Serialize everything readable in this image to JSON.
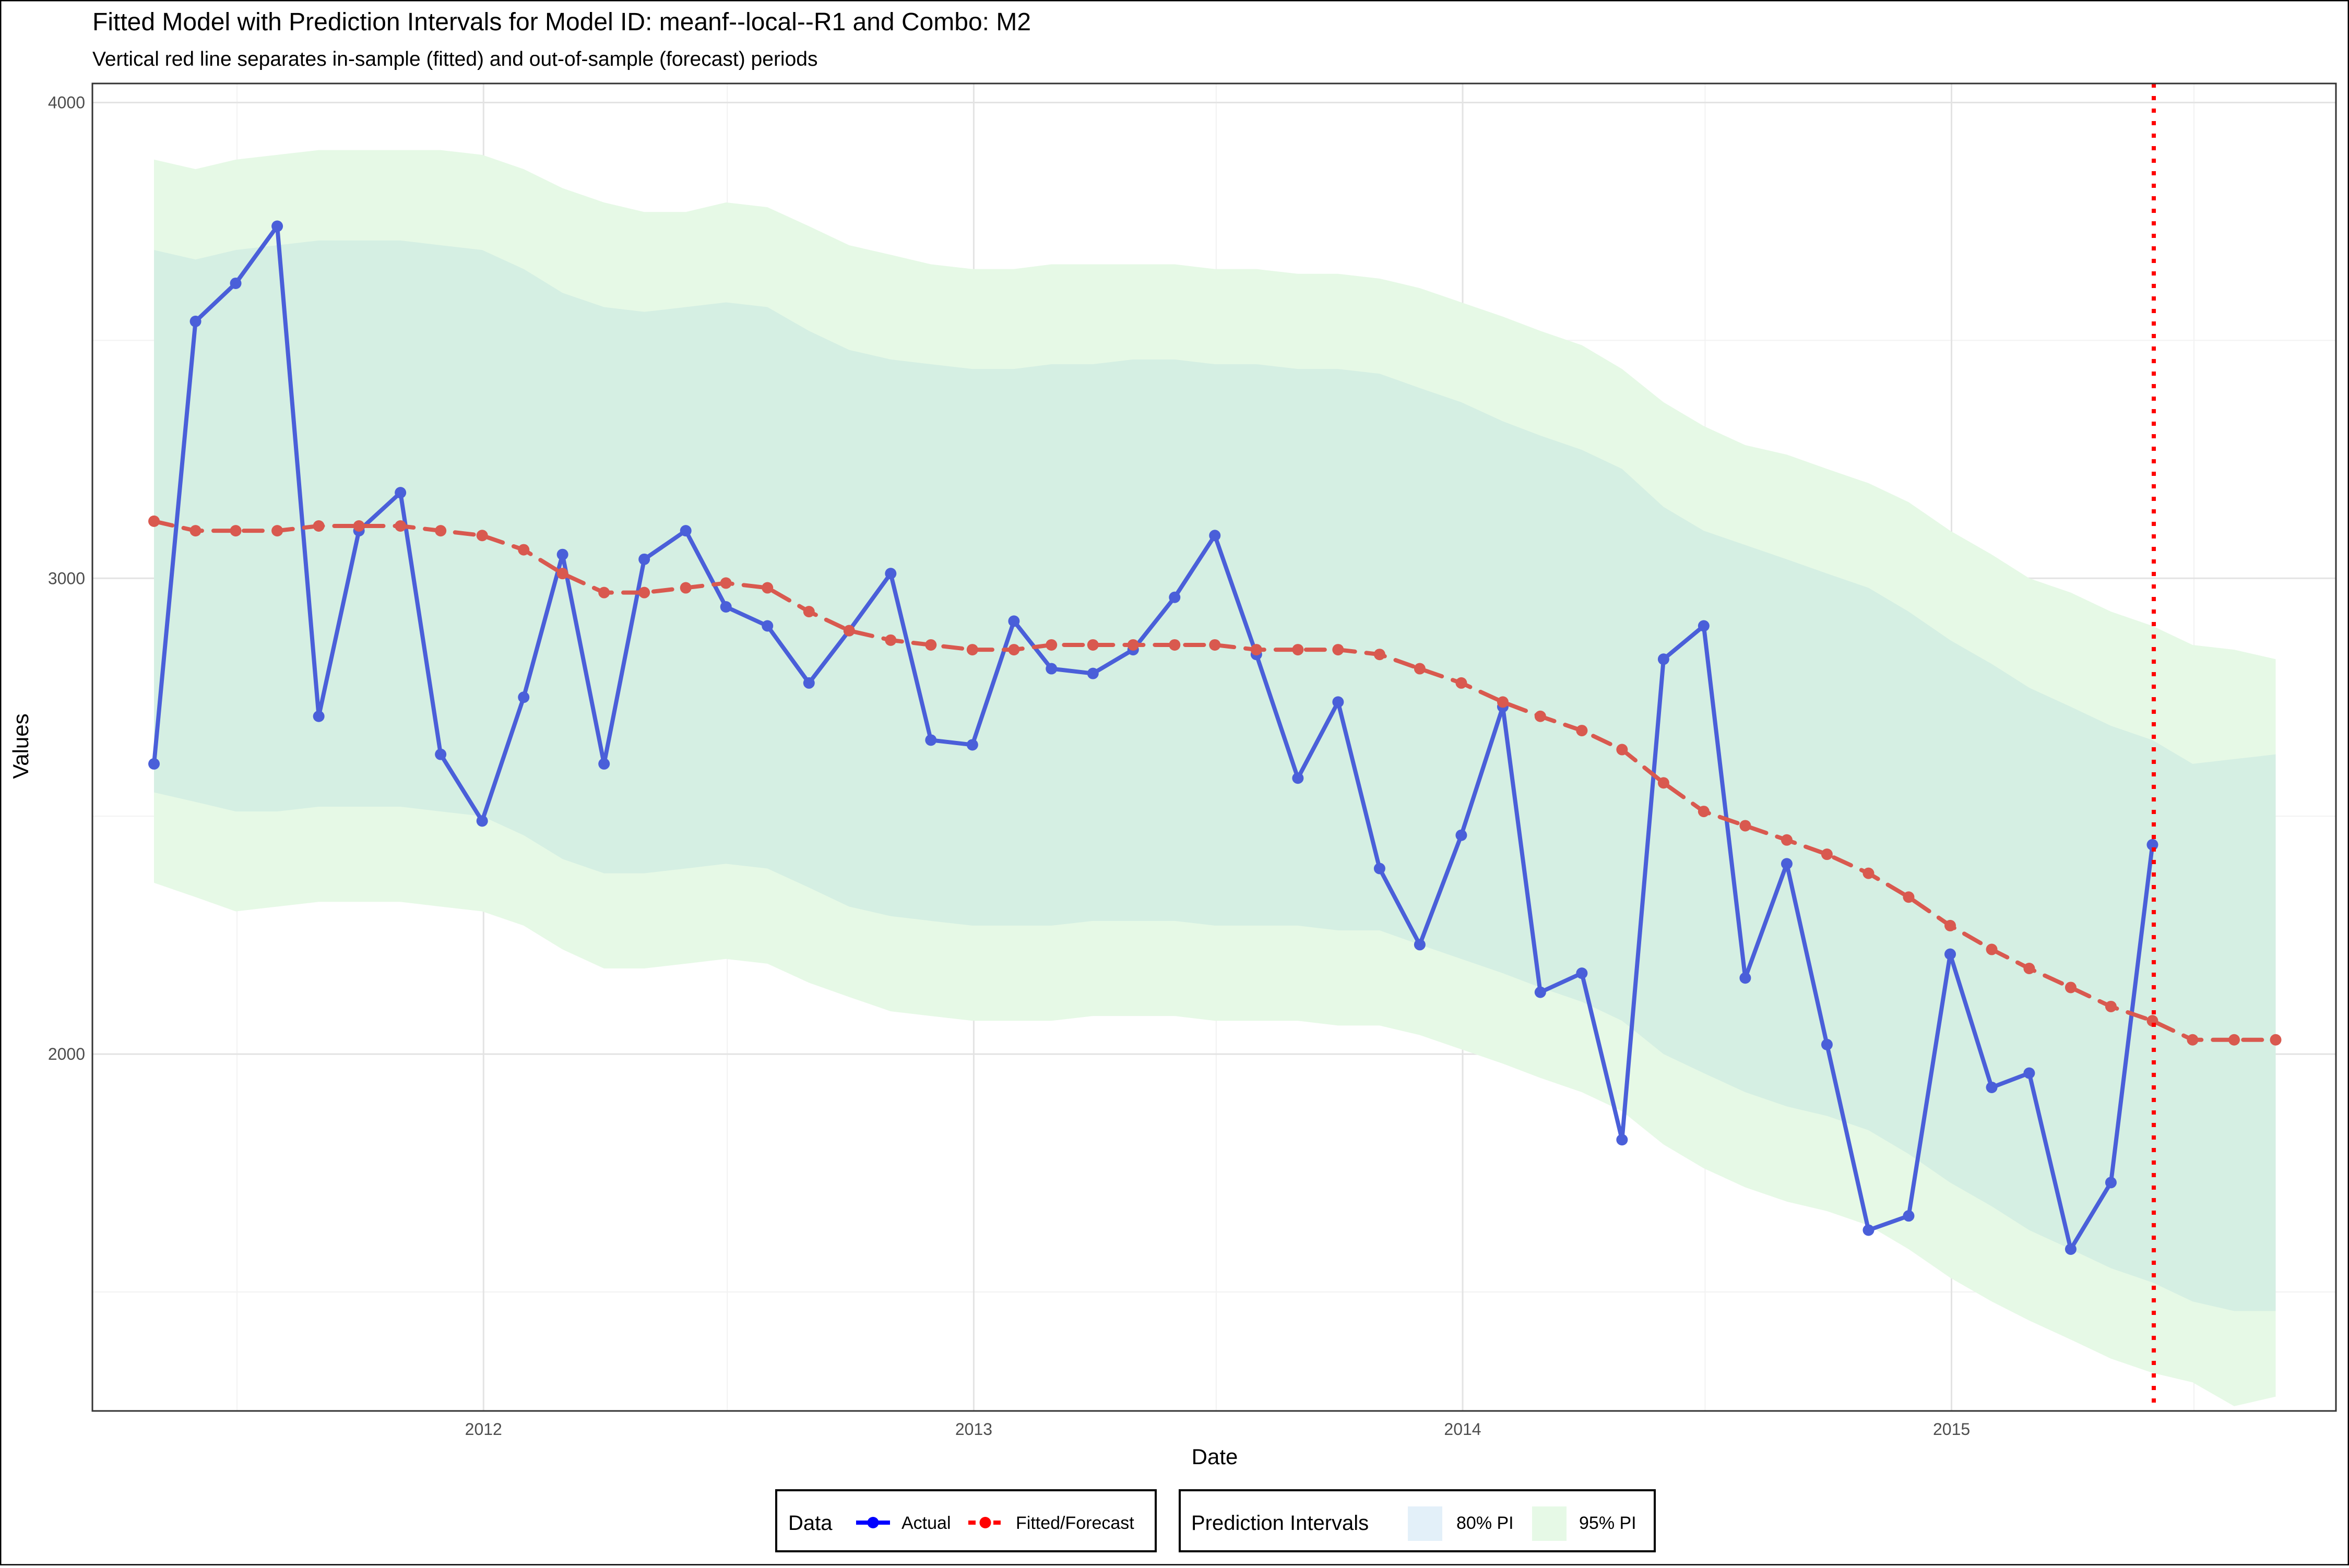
{
  "chart_data": {
    "type": "line",
    "title": "Fitted Model with Prediction Intervals for Model ID: meanf--local--R1 and Combo: M2",
    "subtitle": "Vertical red line separates in-sample (fitted) and out-of-sample (forecast) periods",
    "xlabel": "Date",
    "ylabel": "Values",
    "x_ticks": [
      "2012",
      "2013",
      "2014",
      "2015"
    ],
    "y_ticks": [
      2000,
      3000,
      4000
    ],
    "ylim": [
      1250,
      4040
    ],
    "xlim": [
      "2011-03-15",
      "2015-10-15"
    ],
    "grid": true,
    "legend_position": "bottom",
    "split_date": "2015-06-01",
    "split_line_color": "#ff0000",
    "x": [
      "2011-04-30",
      "2011-05-31",
      "2011-06-30",
      "2011-07-31",
      "2011-08-31",
      "2011-09-30",
      "2011-10-31",
      "2011-11-30",
      "2011-12-31",
      "2012-01-31",
      "2012-02-29",
      "2012-03-31",
      "2012-04-30",
      "2012-05-31",
      "2012-06-30",
      "2012-07-31",
      "2012-08-31",
      "2012-09-30",
      "2012-10-31",
      "2012-11-30",
      "2012-12-31",
      "2013-01-31",
      "2013-02-28",
      "2013-03-31",
      "2013-04-30",
      "2013-05-31",
      "2013-06-30",
      "2013-07-31",
      "2013-08-31",
      "2013-09-30",
      "2013-10-31",
      "2013-11-30",
      "2013-12-31",
      "2014-01-31",
      "2014-02-28",
      "2014-03-31",
      "2014-04-30",
      "2014-05-31",
      "2014-06-30",
      "2014-07-31",
      "2014-08-31",
      "2014-09-30",
      "2014-10-31",
      "2014-11-30",
      "2014-12-31",
      "2015-01-31",
      "2015-02-28",
      "2015-03-31",
      "2015-04-30",
      "2015-05-31",
      "2015-06-30",
      "2015-07-31",
      "2015-08-31"
    ],
    "series": [
      {
        "name": "Actual",
        "color": "#4a5fd9",
        "values": [
          2610,
          3540,
          3620,
          3740,
          2710,
          3100,
          3180,
          2630,
          2490,
          2750,
          3050,
          2610,
          3040,
          3100,
          2940,
          2900,
          2780,
          2890,
          3010,
          2660,
          2650,
          2910,
          2810,
          2800,
          2850,
          2960,
          3090,
          2840,
          2580,
          2740,
          2390,
          2230,
          2460,
          2730,
          2130,
          2170,
          1820,
          2830,
          2900,
          2160,
          2400,
          2020,
          1630,
          1660,
          2210,
          1930,
          1960,
          1590,
          1730,
          2440,
          null,
          null,
          null
        ]
      },
      {
        "name": "Fitted/Forecast",
        "color": "#d9594f",
        "values": [
          3120,
          3100,
          3100,
          3100,
          3110,
          3110,
          3110,
          3100,
          3090,
          3060,
          3010,
          2970,
          2970,
          2980,
          2990,
          2980,
          2930,
          2890,
          2870,
          2860,
          2850,
          2850,
          2860,
          2860,
          2860,
          2860,
          2860,
          2850,
          2850,
          2850,
          2840,
          2810,
          2780,
          2740,
          2710,
          2680,
          2640,
          2570,
          2510,
          2480,
          2450,
          2420,
          2380,
          2330,
          2270,
          2220,
          2180,
          2140,
          2100,
          2070,
          2030,
          2030,
          2030
        ]
      }
    ],
    "intervals": [
      {
        "name": "95% PI",
        "color": "#e6f9e6",
        "upper": [
          3880,
          3860,
          3880,
          3890,
          3900,
          3900,
          3900,
          3900,
          3890,
          3860,
          3820,
          3790,
          3770,
          3770,
          3790,
          3780,
          3740,
          3700,
          3680,
          3660,
          3650,
          3650,
          3660,
          3660,
          3660,
          3660,
          3650,
          3650,
          3640,
          3640,
          3630,
          3610,
          3580,
          3550,
          3520,
          3490,
          3440,
          3370,
          3320,
          3280,
          3260,
          3230,
          3200,
          3160,
          3100,
          3050,
          3000,
          2970,
          2930,
          2900,
          2860,
          2850,
          2830
        ],
        "lower": [
          2360,
          2330,
          2300,
          2310,
          2320,
          2320,
          2320,
          2310,
          2300,
          2270,
          2220,
          2180,
          2180,
          2190,
          2200,
          2190,
          2150,
          2120,
          2090,
          2080,
          2070,
          2070,
          2070,
          2080,
          2080,
          2080,
          2070,
          2070,
          2070,
          2060,
          2060,
          2040,
          2010,
          1980,
          1950,
          1920,
          1880,
          1810,
          1760,
          1720,
          1690,
          1670,
          1640,
          1590,
          1530,
          1480,
          1440,
          1400,
          1360,
          1330,
          1310,
          1260,
          1280
        ]
      },
      {
        "name": "80% PI",
        "color": "#d5efe3",
        "upper": [
          3690,
          3670,
          3690,
          3700,
          3710,
          3710,
          3710,
          3700,
          3690,
          3650,
          3600,
          3570,
          3560,
          3570,
          3580,
          3570,
          3520,
          3480,
          3460,
          3450,
          3440,
          3440,
          3450,
          3450,
          3460,
          3460,
          3450,
          3450,
          3440,
          3440,
          3430,
          3400,
          3370,
          3330,
          3300,
          3270,
          3230,
          3150,
          3100,
          3070,
          3040,
          3010,
          2980,
          2930,
          2870,
          2820,
          2770,
          2730,
          2690,
          2660,
          2610,
          2620,
          2630
        ],
        "lower": [
          2550,
          2530,
          2510,
          2510,
          2520,
          2520,
          2520,
          2510,
          2500,
          2460,
          2410,
          2380,
          2380,
          2390,
          2400,
          2390,
          2350,
          2310,
          2290,
          2280,
          2270,
          2270,
          2270,
          2280,
          2280,
          2280,
          2270,
          2270,
          2270,
          2260,
          2260,
          2230,
          2200,
          2170,
          2140,
          2110,
          2070,
          2000,
          1960,
          1920,
          1890,
          1870,
          1840,
          1790,
          1730,
          1680,
          1630,
          1590,
          1550,
          1520,
          1480,
          1460,
          1460
        ]
      }
    ],
    "legend": {
      "data": {
        "title": "Data",
        "items": [
          {
            "label": "Actual",
            "color": "#0000ff"
          },
          {
            "label": "Fitted/Forecast",
            "color": "#ff0000"
          }
        ]
      },
      "intervals": {
        "title": "Prediction Intervals",
        "items": [
          {
            "label": "80% PI",
            "color": "#e3f0f9"
          },
          {
            "label": "95% PI",
            "color": "#e6f9e6"
          }
        ]
      }
    }
  }
}
